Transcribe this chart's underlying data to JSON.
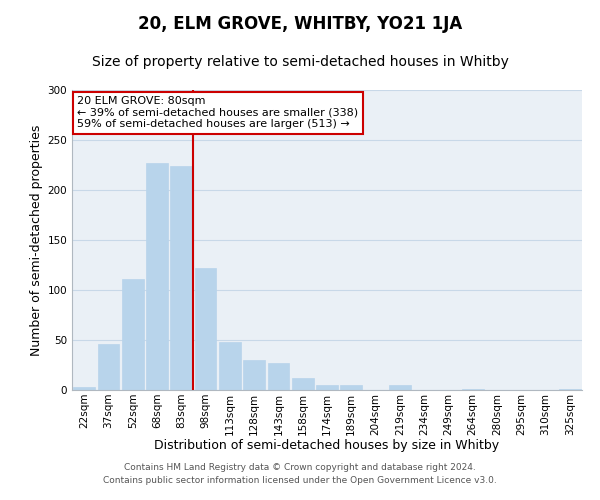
{
  "title": "20, ELM GROVE, WHITBY, YO21 1JA",
  "subtitle": "Size of property relative to semi-detached houses in Whitby",
  "xlabel": "Distribution of semi-detached houses by size in Whitby",
  "ylabel": "Number of semi-detached properties",
  "categories": [
    "22sqm",
    "37sqm",
    "52sqm",
    "68sqm",
    "83sqm",
    "98sqm",
    "113sqm",
    "128sqm",
    "143sqm",
    "158sqm",
    "174sqm",
    "189sqm",
    "204sqm",
    "219sqm",
    "234sqm",
    "249sqm",
    "264sqm",
    "280sqm",
    "295sqm",
    "310sqm",
    "325sqm"
  ],
  "values": [
    3,
    46,
    111,
    227,
    224,
    122,
    48,
    30,
    27,
    12,
    5,
    5,
    0,
    5,
    0,
    0,
    1,
    0,
    0,
    0,
    1
  ],
  "bar_color": "#b8d4eb",
  "bar_edgecolor": "#b8d4eb",
  "grid_color": "#c8d8e8",
  "background_color": "#eaf0f6",
  "annotation_line1": "20 ELM GROVE: 80sqm",
  "annotation_line2": "← 39% of semi-detached houses are smaller (338)",
  "annotation_line3": "59% of semi-detached houses are larger (513) →",
  "annotation_box_color": "#cc0000",
  "marker_line_index": 4,
  "ylim": [
    0,
    300
  ],
  "yticks": [
    0,
    50,
    100,
    150,
    200,
    250,
    300
  ],
  "footer_line1": "Contains HM Land Registry data © Crown copyright and database right 2024.",
  "footer_line2": "Contains public sector information licensed under the Open Government Licence v3.0.",
  "title_fontsize": 12,
  "subtitle_fontsize": 10,
  "axis_label_fontsize": 9,
  "tick_fontsize": 7.5,
  "footer_fontsize": 6.5,
  "annotation_fontsize": 8
}
